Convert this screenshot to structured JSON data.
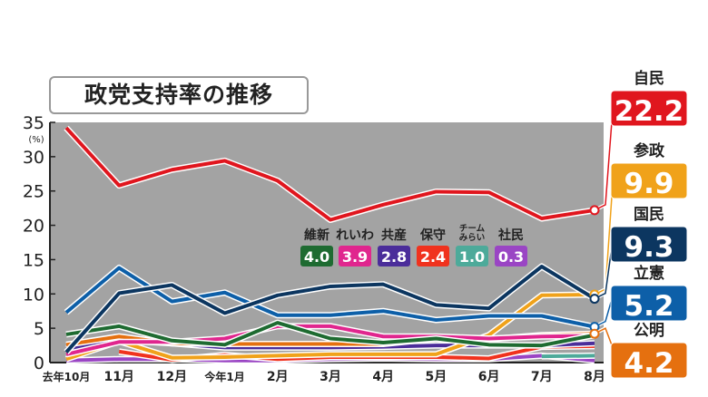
{
  "chart_data": {
    "type": "line",
    "title": "政党支持率の推移",
    "ylabel": "(%)",
    "ylim": [
      0,
      35
    ],
    "yticks": [
      0,
      5,
      10,
      15,
      20,
      25,
      30,
      35
    ],
    "categories": [
      "去年10月",
      "11月",
      "12月",
      "今年1月",
      "2月",
      "3月",
      "4月",
      "5月",
      "6月",
      "7月",
      "8月"
    ],
    "grid": false,
    "background": "#a3a3a3",
    "series": [
      {
        "name": "自民",
        "color": "#e0161e",
        "values": [
          34.2,
          25.8,
          28.1,
          29.4,
          26.5,
          20.8,
          23.0,
          24.9,
          24.8,
          21.0,
          22.2
        ],
        "label": "22.2"
      },
      {
        "name": "国民",
        "color": "#0c3660",
        "values": [
          1.5,
          10.1,
          11.3,
          7.2,
          9.8,
          11.1,
          11.4,
          8.4,
          7.9,
          14.0,
          9.3
        ],
        "label": "9.3"
      },
      {
        "name": "立憲",
        "color": "#0d5fa8",
        "values": [
          7.3,
          13.8,
          8.9,
          10.2,
          6.9,
          6.9,
          7.5,
          6.2,
          6.8,
          6.8,
          5.2
        ],
        "label": "5.2"
      },
      {
        "name": "維新",
        "color": "#1e6b31",
        "values": [
          4.1,
          5.3,
          3.2,
          2.6,
          5.8,
          3.5,
          2.9,
          3.5,
          2.6,
          2.5,
          4.0
        ],
        "label": "4.0"
      },
      {
        "name": "れいわ",
        "color": "#e0268e",
        "values": [
          1.2,
          3.0,
          3.0,
          3.5,
          5.3,
          5.3,
          3.8,
          3.8,
          3.5,
          3.8,
          3.9
        ],
        "label": "3.9"
      },
      {
        "name": "共産",
        "color": "#4b2d9a",
        "values": [
          2.0,
          3.3,
          2.8,
          2.2,
          2.2,
          2.2,
          2.3,
          2.5,
          2.5,
          2.5,
          2.8
        ],
        "label": "2.8"
      },
      {
        "name": "保守",
        "color": "#f0321e",
        "values": [
          null,
          1.6,
          0.4,
          1.1,
          0.5,
          0.8,
          0.8,
          0.8,
          0.6,
          2.3,
          2.4
        ],
        "label": "2.4"
      },
      {
        "name": "チームみらい",
        "color": "#4daa9a",
        "values": [
          null,
          null,
          null,
          null,
          null,
          null,
          null,
          null,
          null,
          0.9,
          1.0
        ],
        "label": "1.0"
      },
      {
        "name": "社民",
        "color": "#9a45c4",
        "values": [
          0.3,
          0.5,
          0.5,
          0.3,
          0.3,
          0.5,
          0.6,
          0.5,
          0.5,
          1.0,
          0.3
        ],
        "label": "0.3"
      },
      {
        "name": "公明",
        "color": "#e5700f",
        "values": [
          2.6,
          3.8,
          2.8,
          2.7,
          2.7,
          2.7,
          2.7,
          3.5,
          3.4,
          4.0,
          4.2
        ],
        "label": "4.2"
      },
      {
        "name": "参政",
        "color": "#f0a21a",
        "values": [
          0.5,
          3.1,
          0.7,
          0.8,
          1.0,
          1.2,
          1.2,
          1.2,
          4.0,
          9.8,
          9.9
        ],
        "label": "9.9"
      }
    ],
    "right_labels": [
      "自民",
      "参政",
      "国民",
      "立憲",
      "公明"
    ],
    "inline_legend": [
      "維新",
      "れいわ",
      "共産",
      "保守",
      "チームみらい",
      "社民"
    ],
    "inline_legend_display": {
      "チームみらい": [
        "チーム",
        "みらい"
      ]
    }
  }
}
